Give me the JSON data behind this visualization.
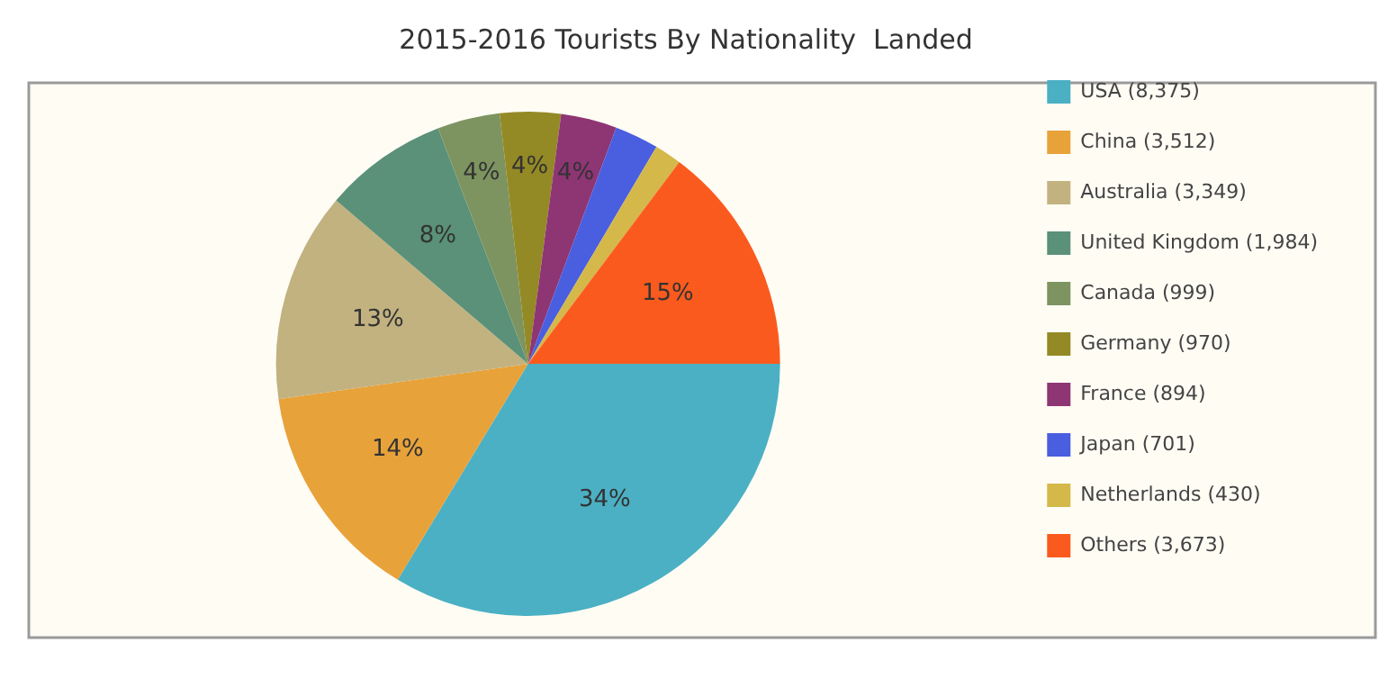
{
  "chart_data": {
    "type": "pie",
    "title": "2015-2016 Tourists By Nationality  Landed",
    "categories": [
      "USA (8,375)",
      "China (3,512)",
      "Australia (3,349)",
      "United Kingdom (1,984)",
      "Canada (999)",
      "Germany (970)",
      "France (894)",
      "Japan (701)",
      "Netherlands (430)",
      "Others (3,673)"
    ],
    "values": [
      33.65,
      14.11,
      13.46,
      7.97,
      4.01,
      3.9,
      3.59,
      2.82,
      1.73,
      14.76
    ],
    "colors": [
      "#4bb0c4",
      "#e8a23a",
      "#c2b280",
      "#5a9178",
      "#7d9460",
      "#948a25",
      "#8e3574",
      "#4a5ee0",
      "#d4b84a",
      "#fb5a1e"
    ],
    "value_labels": [
      "34%",
      "14%",
      "13%",
      "8%",
      "4%",
      "4%",
      "4%",
      null,
      null,
      "15%"
    ],
    "legend": "right"
  }
}
